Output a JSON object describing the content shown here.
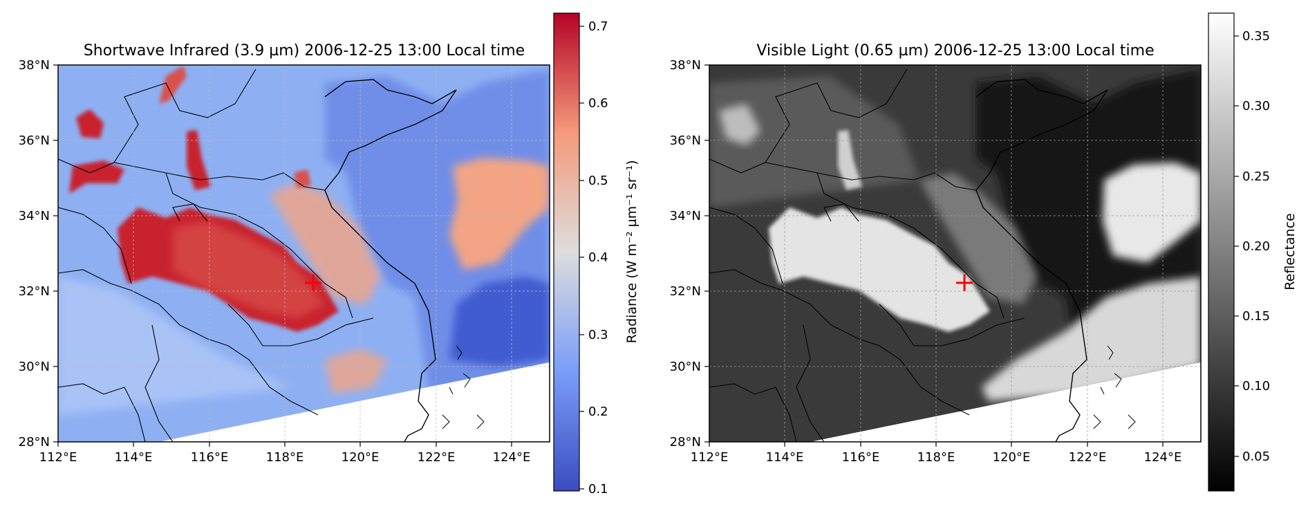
{
  "panels": [
    {
      "title": "Shortwave Infrared (3.9 µm)  2006-12-25 13:00 Local time",
      "colorbar": {
        "label": "Radiance (W m⁻² µm⁻¹ sr⁻¹)",
        "ticks": [
          "0.7",
          "0.6",
          "0.5",
          "0.4",
          "0.3",
          "0.2",
          "0.1"
        ],
        "range": [
          0.1,
          0.72
        ],
        "colormap": "coolwarm"
      }
    },
    {
      "title": "Visible Light (0.65 µm)  2006-12-25 13:00 Local time",
      "colorbar": {
        "label": "Reflectance",
        "ticks": [
          "0.35",
          "0.30",
          "0.25",
          "0.20",
          "0.15",
          "0.10",
          "0.05"
        ],
        "range": [
          0.02,
          0.37
        ],
        "colormap": "gray"
      }
    }
  ],
  "axes": {
    "lon_ticks": [
      "112°E",
      "114°E",
      "116°E",
      "118°E",
      "120°E",
      "122°E",
      "124°E"
    ],
    "lat_ticks": [
      "38°N",
      "36°N",
      "34°N",
      "32°N",
      "30°N",
      "28°N"
    ],
    "lon_range": [
      112,
      125
    ],
    "lat_range": [
      28,
      38
    ]
  },
  "marker": {
    "symbol": "+",
    "color": "#ff0000",
    "lon": 118.7,
    "lat": 32.2
  },
  "colors": {
    "cool": "#3b4cc0",
    "neutral": "#dddddd",
    "warm": "#b40426"
  }
}
